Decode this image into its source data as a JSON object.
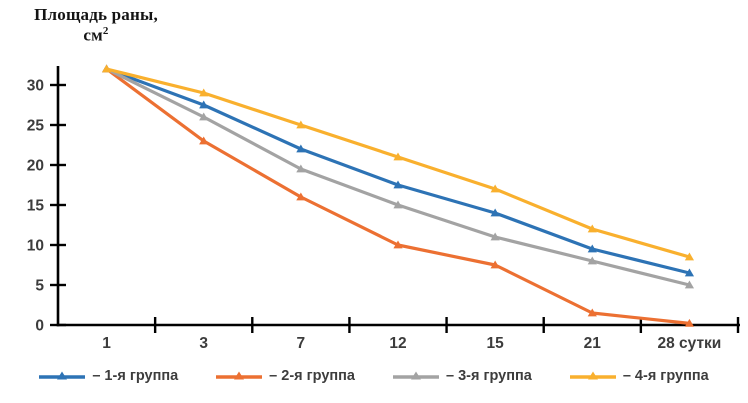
{
  "title": {
    "line1": "Площадь раны,",
    "line2_base": "см",
    "line2_sup": "2"
  },
  "chart_data": {
    "type": "line",
    "title": "Площадь раны, см²",
    "ylabel": "Площадь раны, см²",
    "xlabel": "сутки",
    "categories": [
      "1",
      "3",
      "7",
      "12",
      "15",
      "21",
      "28 сутки"
    ],
    "x_days": [
      1,
      3,
      7,
      12,
      15,
      21,
      28
    ],
    "series": [
      {
        "name": "1-я группа",
        "legend_label": "– 1-я группа",
        "color": "#2d73b5",
        "values": [
          32,
          27.5,
          22,
          17.5,
          14,
          9.5,
          6.5
        ]
      },
      {
        "name": "2-я группа",
        "legend_label": "– 2-я группа",
        "color": "#ec7032",
        "values": [
          32,
          23,
          16,
          10,
          7.5,
          1.5,
          0.2
        ]
      },
      {
        "name": "3-я группа",
        "legend_label": "– 3-я группа",
        "color": "#a3a3a3",
        "values": [
          32,
          26,
          19.5,
          15,
          11,
          8,
          5
        ]
      },
      {
        "name": "4-я группа",
        "legend_label": "– 4-я группа",
        "color": "#f9b02e",
        "values": [
          32,
          29,
          25,
          21,
          17,
          12,
          8.5
        ]
      }
    ],
    "yticks": [
      0,
      5,
      10,
      15,
      20,
      25,
      30
    ],
    "ylim": [
      0,
      32.5
    ],
    "grid": false,
    "marker": "triangle",
    "legend_position": "bottom",
    "axis_color": "#000000",
    "tick_label_color": "#3c3c3c"
  }
}
